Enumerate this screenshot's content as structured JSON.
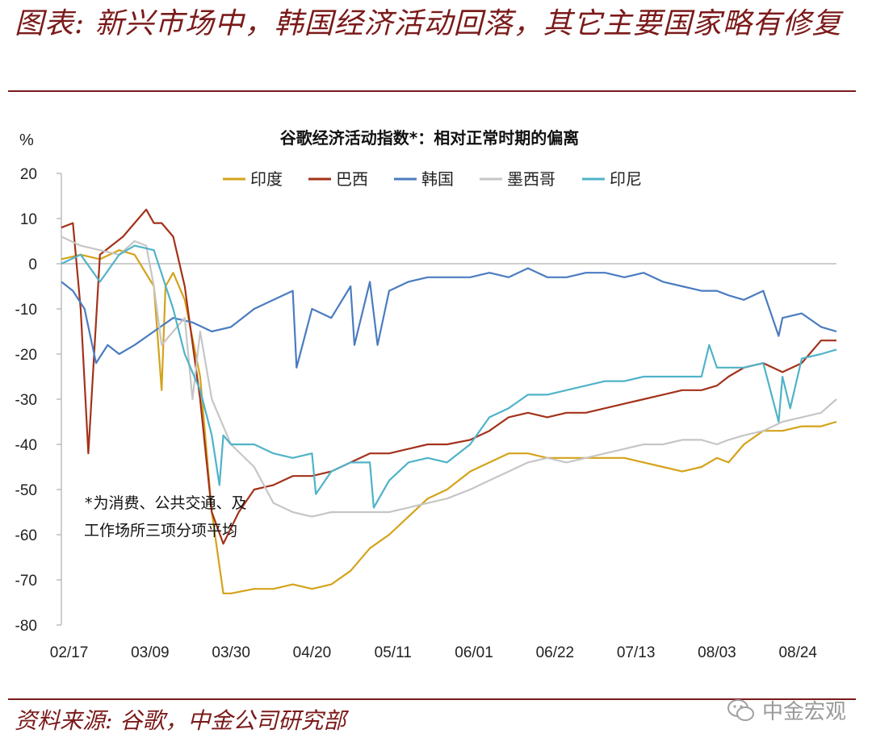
{
  "header": {
    "title": "图表: 新兴市场中，韩国经济活动回落，其它主要国家略有修复"
  },
  "footer": {
    "source": "资料来源: 谷歌，中金公司研究部",
    "watermark": "中金宏观",
    "watermark_icon": "wechat-icon"
  },
  "chart_data": {
    "type": "line",
    "title": "谷歌经济活动指数*：相对正常时期的偏离",
    "ylabel": "%",
    "ylim": [
      -80,
      20
    ],
    "yticks": [
      20,
      10,
      0,
      -10,
      -20,
      -30,
      -40,
      -50,
      -60,
      -70,
      -80
    ],
    "xticks": [
      "02/17",
      "03/09",
      "03/30",
      "04/20",
      "05/11",
      "06/01",
      "06/22",
      "07/13",
      "08/03",
      "08/24"
    ],
    "x_start": "2020-02-15",
    "x_end": "2020-09-03",
    "zero_line": true,
    "legend_position": "top",
    "note": [
      "*为消费、公共交通、及",
      "工作场所三项分项平均"
    ],
    "series": [
      {
        "name": "印度",
        "color": "#D4A31A",
        "x": [
          "2020-02-15",
          "2020-02-20",
          "2020-02-25",
          "2020-03-01",
          "2020-03-05",
          "2020-03-10",
          "2020-03-12",
          "2020-03-13",
          "2020-03-15",
          "2020-03-18",
          "2020-03-22",
          "2020-03-25",
          "2020-03-28",
          "2020-03-30",
          "2020-04-05",
          "2020-04-10",
          "2020-04-15",
          "2020-04-20",
          "2020-04-25",
          "2020-04-30",
          "2020-05-05",
          "2020-05-10",
          "2020-05-15",
          "2020-05-20",
          "2020-05-25",
          "2020-05-31",
          "2020-06-05",
          "2020-06-10",
          "2020-06-15",
          "2020-06-20",
          "2020-06-25",
          "2020-06-30",
          "2020-07-05",
          "2020-07-10",
          "2020-07-15",
          "2020-07-20",
          "2020-07-25",
          "2020-07-30",
          "2020-08-03",
          "2020-08-06",
          "2020-08-10",
          "2020-08-15",
          "2020-08-20",
          "2020-08-25",
          "2020-08-30",
          "2020-09-03"
        ],
        "values": [
          1,
          2,
          1,
          3,
          2,
          -5,
          -28,
          -5,
          -2,
          -8,
          -25,
          -55,
          -73,
          -73,
          -72,
          -72,
          -71,
          -72,
          -71,
          -68,
          -63,
          -60,
          -56,
          -52,
          -50,
          -46,
          -44,
          -42,
          -42,
          -43,
          -43,
          -43,
          -43,
          -43,
          -44,
          -45,
          -46,
          -45,
          -43,
          -44,
          -40,
          -37,
          -37,
          -36,
          -36,
          -35
        ]
      },
      {
        "name": "巴西",
        "color": "#A3321A",
        "x": [
          "2020-02-15",
          "2020-02-18",
          "2020-02-20",
          "2020-02-22",
          "2020-02-25",
          "2020-02-28",
          "2020-03-02",
          "2020-03-06",
          "2020-03-08",
          "2020-03-10",
          "2020-03-12",
          "2020-03-15",
          "2020-03-18",
          "2020-03-22",
          "2020-03-25",
          "2020-03-28",
          "2020-04-01",
          "2020-04-05",
          "2020-04-10",
          "2020-04-15",
          "2020-04-20",
          "2020-04-25",
          "2020-04-30",
          "2020-05-05",
          "2020-05-10",
          "2020-05-15",
          "2020-05-20",
          "2020-05-25",
          "2020-05-31",
          "2020-06-05",
          "2020-06-10",
          "2020-06-15",
          "2020-06-20",
          "2020-06-25",
          "2020-06-30",
          "2020-07-05",
          "2020-07-10",
          "2020-07-15",
          "2020-07-20",
          "2020-07-25",
          "2020-07-30",
          "2020-08-03",
          "2020-08-06",
          "2020-08-10",
          "2020-08-15",
          "2020-08-20",
          "2020-08-25",
          "2020-08-30",
          "2020-09-03"
        ],
        "values": [
          8,
          9,
          -10,
          -42,
          2,
          4,
          6,
          10,
          12,
          9,
          9,
          6,
          -5,
          -30,
          -55,
          -62,
          -55,
          -50,
          -49,
          -47,
          -47,
          -46,
          -44,
          -42,
          -42,
          -41,
          -40,
          -40,
          -39,
          -37,
          -34,
          -33,
          -34,
          -33,
          -33,
          -32,
          -31,
          -30,
          -29,
          -28,
          -28,
          -27,
          -25,
          -23,
          -22,
          -24,
          -22,
          -17,
          -17
        ]
      },
      {
        "name": "韩国",
        "color": "#4A7CC0",
        "x": [
          "2020-02-15",
          "2020-02-18",
          "2020-02-21",
          "2020-02-24",
          "2020-02-27",
          "2020-03-01",
          "2020-03-05",
          "2020-03-10",
          "2020-03-15",
          "2020-03-20",
          "2020-03-25",
          "2020-03-30",
          "2020-04-05",
          "2020-04-10",
          "2020-04-15",
          "2020-04-16",
          "2020-04-20",
          "2020-04-25",
          "2020-04-30",
          "2020-05-01",
          "2020-05-05",
          "2020-05-07",
          "2020-05-10",
          "2020-05-15",
          "2020-05-20",
          "2020-05-25",
          "2020-05-31",
          "2020-06-05",
          "2020-06-10",
          "2020-06-15",
          "2020-06-20",
          "2020-06-25",
          "2020-06-30",
          "2020-07-05",
          "2020-07-10",
          "2020-07-15",
          "2020-07-20",
          "2020-07-25",
          "2020-07-30",
          "2020-08-03",
          "2020-08-06",
          "2020-08-10",
          "2020-08-15",
          "2020-08-19",
          "2020-08-20",
          "2020-08-25",
          "2020-08-30",
          "2020-09-03"
        ],
        "values": [
          -4,
          -6,
          -10,
          -22,
          -18,
          -20,
          -18,
          -15,
          -12,
          -13,
          -15,
          -14,
          -10,
          -8,
          -6,
          -23,
          -10,
          -12,
          -5,
          -18,
          -4,
          -18,
          -6,
          -4,
          -3,
          -3,
          -3,
          -2,
          -3,
          -1,
          -3,
          -3,
          -2,
          -2,
          -3,
          -2,
          -4,
          -5,
          -6,
          -6,
          -7,
          -8,
          -6,
          -16,
          -12,
          -11,
          -14,
          -15
        ]
      },
      {
        "name": "墨西哥",
        "color": "#C6C6C6",
        "x": [
          "2020-02-15",
          "2020-02-20",
          "2020-02-25",
          "2020-03-01",
          "2020-03-05",
          "2020-03-08",
          "2020-03-10",
          "2020-03-12",
          "2020-03-15",
          "2020-03-18",
          "2020-03-20",
          "2020-03-22",
          "2020-03-25",
          "2020-03-30",
          "2020-04-05",
          "2020-04-10",
          "2020-04-15",
          "2020-04-20",
          "2020-04-25",
          "2020-04-30",
          "2020-05-05",
          "2020-05-10",
          "2020-05-15",
          "2020-05-20",
          "2020-05-25",
          "2020-05-31",
          "2020-06-05",
          "2020-06-10",
          "2020-06-15",
          "2020-06-20",
          "2020-06-25",
          "2020-06-30",
          "2020-07-05",
          "2020-07-10",
          "2020-07-15",
          "2020-07-20",
          "2020-07-25",
          "2020-07-30",
          "2020-08-03",
          "2020-08-06",
          "2020-08-10",
          "2020-08-15",
          "2020-08-20",
          "2020-08-25",
          "2020-08-30",
          "2020-09-03"
        ],
        "values": [
          6,
          4,
          3,
          2,
          5,
          4,
          -5,
          -18,
          -15,
          -12,
          -30,
          -15,
          -30,
          -40,
          -45,
          -53,
          -55,
          -56,
          -55,
          -55,
          -55,
          -55,
          -54,
          -53,
          -52,
          -50,
          -48,
          -46,
          -44,
          -43,
          -44,
          -43,
          -42,
          -41,
          -40,
          -40,
          -39,
          -39,
          -40,
          -39,
          -38,
          -37,
          -35,
          -34,
          -33,
          -30
        ]
      },
      {
        "name": "印尼",
        "color": "#4FB3C8",
        "x": [
          "2020-02-15",
          "2020-02-20",
          "2020-02-25",
          "2020-03-01",
          "2020-03-05",
          "2020-03-10",
          "2020-03-15",
          "2020-03-18",
          "2020-03-22",
          "2020-03-25",
          "2020-03-27",
          "2020-03-28",
          "2020-03-30",
          "2020-04-05",
          "2020-04-10",
          "2020-04-15",
          "2020-04-20",
          "2020-04-21",
          "2020-04-25",
          "2020-04-30",
          "2020-05-05",
          "2020-05-06",
          "2020-05-10",
          "2020-05-15",
          "2020-05-20",
          "2020-05-25",
          "2020-05-31",
          "2020-06-05",
          "2020-06-10",
          "2020-06-15",
          "2020-06-20",
          "2020-06-25",
          "2020-06-30",
          "2020-07-05",
          "2020-07-10",
          "2020-07-15",
          "2020-07-20",
          "2020-07-25",
          "2020-07-30",
          "2020-08-01",
          "2020-08-03",
          "2020-08-06",
          "2020-08-10",
          "2020-08-15",
          "2020-08-19",
          "2020-08-20",
          "2020-08-22",
          "2020-08-25",
          "2020-08-30",
          "2020-09-03"
        ],
        "values": [
          0,
          2,
          -4,
          2,
          4,
          3,
          -10,
          -20,
          -28,
          -38,
          -49,
          -38,
          -40,
          -40,
          -42,
          -43,
          -42,
          -51,
          -46,
          -44,
          -44,
          -54,
          -48,
          -44,
          -43,
          -44,
          -40,
          -34,
          -32,
          -29,
          -29,
          -28,
          -27,
          -26,
          -26,
          -25,
          -25,
          -25,
          -25,
          -18,
          -23,
          -23,
          -23,
          -22,
          -35,
          -25,
          -32,
          -21,
          -20,
          -19
        ]
      }
    ]
  }
}
